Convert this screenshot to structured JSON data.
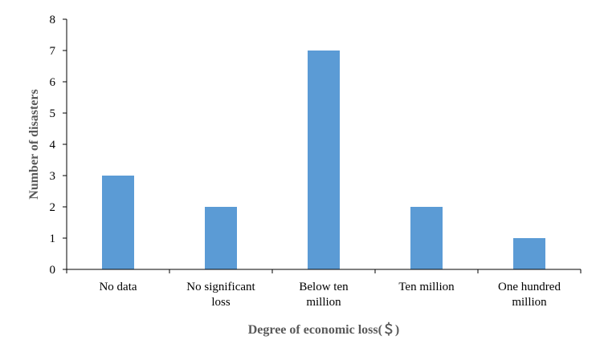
{
  "chart_data": {
    "type": "bar",
    "categories": [
      [
        "No data"
      ],
      [
        "No significant",
        "loss"
      ],
      [
        "Below ten",
        "million"
      ],
      [
        "Ten million"
      ],
      [
        "One hundred",
        "million"
      ]
    ],
    "values": [
      3,
      2,
      7,
      2,
      1
    ],
    "xlabel": "Degree of economic loss(＄)",
    "ylabel": "Number of disasters",
    "ylim": [
      0,
      8
    ],
    "yticks": [
      0,
      1,
      2,
      3,
      4,
      5,
      6,
      7,
      8
    ],
    "grid": false,
    "legend": "none",
    "bar_color": "#5B9BD5",
    "axis_color": "#000000"
  }
}
